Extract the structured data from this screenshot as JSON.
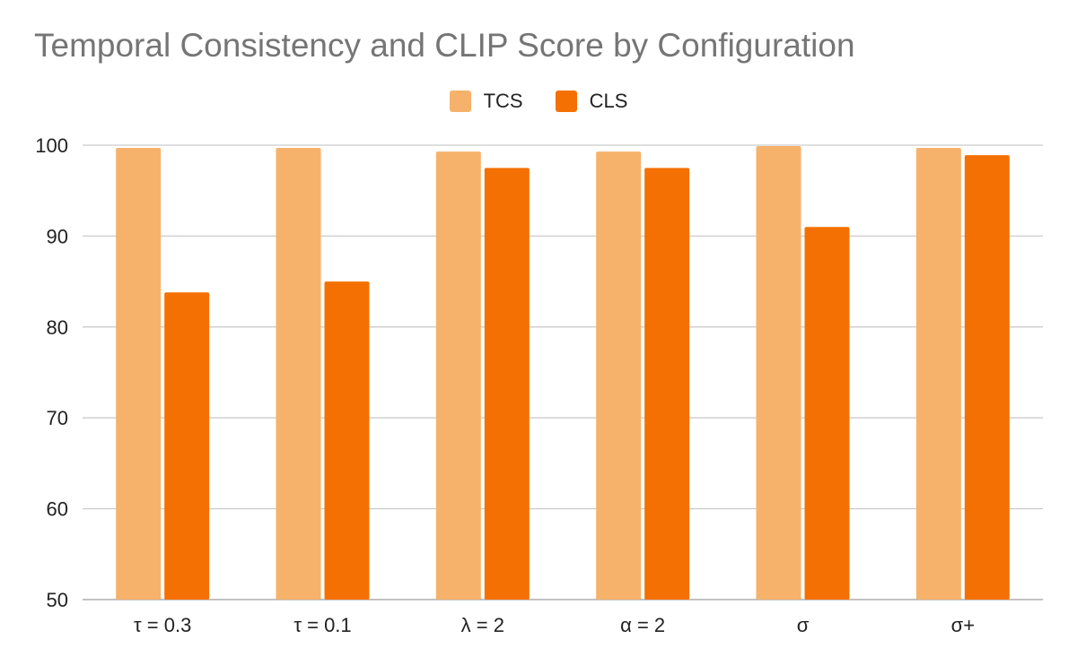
{
  "chart_data": {
    "type": "bar",
    "title": "Temporal Consistency and CLIP Score by Configuration",
    "xlabel": "",
    "ylabel": "",
    "categories": [
      "τ = 0.3",
      "τ = 0.1",
      "λ = 2",
      "α = 2",
      "σ",
      "σ+"
    ],
    "series": [
      {
        "name": "TCS",
        "color": "#f6b26b",
        "values": [
          99.7,
          99.7,
          99.3,
          99.3,
          99.9,
          99.7
        ]
      },
      {
        "name": "CLS",
        "color": "#f57002",
        "values": [
          83.8,
          85.0,
          97.5,
          97.5,
          91.0,
          98.9
        ]
      }
    ],
    "ylim": [
      50,
      100
    ],
    "yticks": [
      "50",
      "60",
      "70",
      "80",
      "90",
      "100"
    ],
    "grid": true,
    "legend_position": "top-center"
  }
}
